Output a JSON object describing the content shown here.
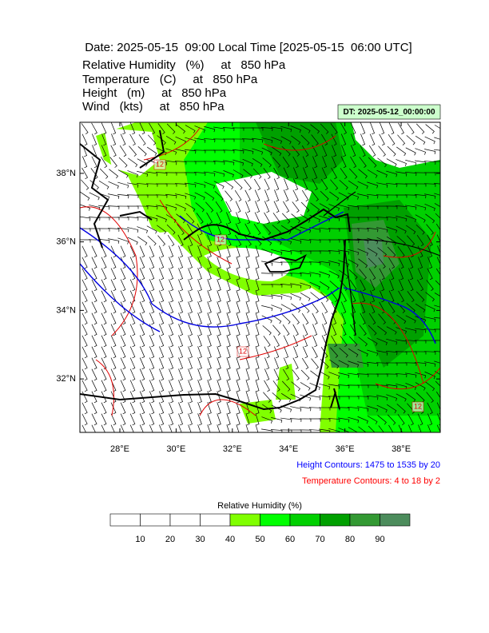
{
  "header": {
    "title": "Date: 2025-05-15  09:00 Local Time [2025-05-15  06:00 UTC]",
    "fields": [
      "Relative Humidity   (%)     at   850 hPa",
      "Temperature   (C)     at   850 hPa",
      "Height   (m)     at   850 hPa",
      "Wind   (kts)     at   850 hPa"
    ],
    "dt": "DT: 2025-05-12_00:00:00"
  },
  "map": {
    "xlim": [
      26.58,
      39.39
    ],
    "ylim": [
      30.44,
      39.49
    ],
    "xticks": [
      {
        "value": 28,
        "label": "28°E"
      },
      {
        "value": 30,
        "label": "30°E"
      },
      {
        "value": 32,
        "label": "32°E"
      },
      {
        "value": 34,
        "label": "34°E"
      },
      {
        "value": 36,
        "label": "36°E"
      },
      {
        "value": 38,
        "label": "38°E"
      }
    ],
    "yticks": [
      {
        "value": 32,
        "label": "32°N"
      },
      {
        "value": 34,
        "label": "34°N"
      },
      {
        "value": 36,
        "label": "36°N"
      },
      {
        "value": 38,
        "label": "38°N"
      }
    ],
    "contour_labels": [
      "12",
      "12",
      "12",
      "12"
    ]
  },
  "legend": {
    "height": "Height Contours: 1475 to 1535 by 20",
    "temperature": "Temperature Contours: 4 to 18 by 2"
  },
  "colorbar": {
    "title": "Relative Humidity  (%)",
    "lim": [
      0,
      100
    ],
    "ticks": [
      10,
      20,
      30,
      40,
      50,
      60,
      70,
      80,
      90
    ],
    "colors": [
      "#ffffff",
      "#ffffff",
      "#ffffff",
      "#ffffff",
      "#80ff00",
      "#00ff00",
      "#00d000",
      "#00a000",
      "#339933",
      "#4c8c5c"
    ]
  }
}
